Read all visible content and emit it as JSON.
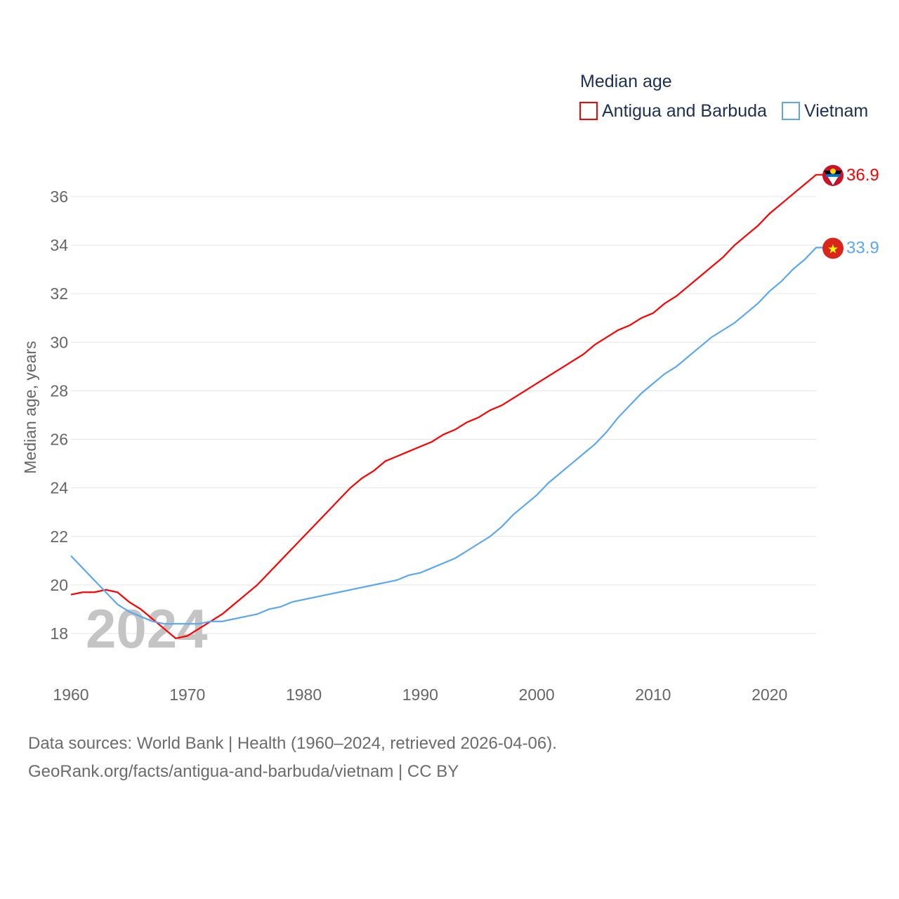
{
  "chart_data": {
    "type": "line",
    "title": "",
    "legend_title": "Median age",
    "legend_position": "top-right",
    "xlabel": "",
    "ylabel": "Median age, years",
    "xlim": [
      1960,
      2024
    ],
    "ylim": [
      17,
      37
    ],
    "x_ticks": [
      "1960",
      "1970",
      "1980",
      "1990",
      "2000",
      "2010",
      "2020"
    ],
    "y_ticks": [
      "18",
      "20",
      "22",
      "24",
      "26",
      "28",
      "30",
      "32",
      "34",
      "36"
    ],
    "grid": true,
    "watermark": "2024",
    "x": [
      1960,
      1961,
      1962,
      1963,
      1964,
      1965,
      1966,
      1967,
      1968,
      1969,
      1970,
      1971,
      1972,
      1973,
      1974,
      1975,
      1976,
      1977,
      1978,
      1979,
      1980,
      1981,
      1982,
      1983,
      1984,
      1985,
      1986,
      1987,
      1988,
      1989,
      1990,
      1991,
      1992,
      1993,
      1994,
      1995,
      1996,
      1997,
      1998,
      1999,
      2000,
      2001,
      2002,
      2003,
      2004,
      2005,
      2006,
      2007,
      2008,
      2009,
      2010,
      2011,
      2012,
      2013,
      2014,
      2015,
      2016,
      2017,
      2018,
      2019,
      2020,
      2021,
      2022,
      2023,
      2024
    ],
    "series": [
      {
        "name": "Antigua and Barbuda",
        "color": "#ff0000",
        "end_label": "36.9",
        "values": [
          19.6,
          19.7,
          19.7,
          19.8,
          19.7,
          19.3,
          19.0,
          18.6,
          18.2,
          17.8,
          17.9,
          18.2,
          18.5,
          18.8,
          19.2,
          19.6,
          20.0,
          20.5,
          21.0,
          21.5,
          22.0,
          22.5,
          23.0,
          23.5,
          24.0,
          24.4,
          24.7,
          25.1,
          25.3,
          25.5,
          25.7,
          25.9,
          26.2,
          26.4,
          26.7,
          26.9,
          27.2,
          27.4,
          27.7,
          28.0,
          28.3,
          28.6,
          28.9,
          29.2,
          29.5,
          29.9,
          30.2,
          30.5,
          30.7,
          31.0,
          31.2,
          31.6,
          31.9,
          32.3,
          32.7,
          33.1,
          33.5,
          34.0,
          34.4,
          34.8,
          35.3,
          35.7,
          36.1,
          36.5,
          36.9
        ]
      },
      {
        "name": "Vietnam",
        "color": "#5ba8f0",
        "end_label": "33.9",
        "values": [
          21.2,
          20.7,
          20.2,
          19.7,
          19.2,
          18.9,
          18.7,
          18.5,
          18.4,
          18.4,
          18.4,
          18.4,
          18.5,
          18.5,
          18.6,
          18.7,
          18.8,
          19.0,
          19.1,
          19.3,
          19.4,
          19.5,
          19.6,
          19.7,
          19.8,
          19.9,
          20.0,
          20.1,
          20.2,
          20.4,
          20.5,
          20.7,
          20.9,
          21.1,
          21.4,
          21.7,
          22.0,
          22.4,
          22.9,
          23.3,
          23.7,
          24.2,
          24.6,
          25.0,
          25.4,
          25.8,
          26.3,
          26.9,
          27.4,
          27.9,
          28.3,
          28.7,
          29.0,
          29.4,
          29.8,
          30.2,
          30.5,
          30.8,
          31.2,
          31.6,
          32.1,
          32.5,
          33.0,
          33.4,
          33.9
        ]
      }
    ]
  },
  "footer": {
    "line1": "Data sources: World Bank | Health (1960–2024, retrieved 2026-04-06).",
    "line2": "GeoRank.org/facts/antigua-and-barbuda/vietnam | CC BY"
  }
}
